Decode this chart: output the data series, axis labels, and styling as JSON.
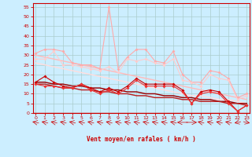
{
  "xlabel": "Vent moyen/en rafales ( km/h )",
  "background_color": "#cceeff",
  "grid_color": "#aacccc",
  "x": [
    0,
    1,
    2,
    3,
    4,
    5,
    6,
    7,
    8,
    9,
    10,
    11,
    12,
    13,
    14,
    15,
    16,
    17,
    18,
    19,
    20,
    21,
    22,
    23
  ],
  "line_rafale_spiky": [
    31,
    33,
    33,
    32,
    26,
    25,
    25,
    23,
    55,
    23,
    29,
    33,
    33,
    27,
    26,
    32,
    20,
    16,
    16,
    22,
    21,
    18,
    8,
    10
  ],
  "line_rafale_smooth": [
    28,
    28,
    32,
    25,
    25,
    24,
    23,
    22,
    24,
    21,
    28,
    27,
    28,
    26,
    25,
    28,
    17,
    16,
    14,
    20,
    18,
    17,
    7,
    9
  ],
  "line_trend_light1": [
    30,
    29,
    28,
    27,
    26,
    25,
    24,
    23,
    22,
    21,
    20,
    19,
    18,
    17,
    16,
    15,
    14,
    13,
    12,
    11,
    10,
    9,
    8,
    7
  ],
  "line_trend_light2": [
    26,
    25,
    24,
    23,
    22,
    21,
    20,
    19,
    18,
    17,
    16,
    15,
    14,
    13,
    12,
    11,
    10,
    9,
    9,
    8,
    7,
    7,
    6,
    5
  ],
  "line_moyen_spiky": [
    16,
    19,
    16,
    14,
    13,
    15,
    13,
    11,
    13,
    11,
    14,
    18,
    15,
    15,
    15,
    15,
    12,
    5,
    11,
    12,
    11,
    6,
    1,
    4
  ],
  "line_moyen_smooth": [
    15,
    14,
    14,
    13,
    13,
    15,
    12,
    10,
    12,
    10,
    13,
    17,
    14,
    14,
    14,
    14,
    11,
    5,
    10,
    11,
    10,
    5,
    1,
    4
  ],
  "line_trend_dark1": [
    16,
    16,
    15,
    15,
    14,
    14,
    13,
    13,
    12,
    12,
    11,
    11,
    10,
    10,
    9,
    9,
    8,
    8,
    7,
    7,
    6,
    6,
    5,
    5
  ],
  "line_trend_dark2": [
    15,
    15,
    14,
    13,
    13,
    12,
    12,
    11,
    11,
    10,
    10,
    9,
    9,
    8,
    8,
    8,
    7,
    7,
    6,
    6,
    6,
    5,
    5,
    4
  ],
  "color_rafale_spiky": "#ffaaaa",
  "color_rafale_smooth": "#ffcccc",
  "color_trend_light1": "#ffbbbb",
  "color_trend_light2": "#ffdddd",
  "color_moyen_spiky": "#cc0000",
  "color_moyen_smooth": "#ee3333",
  "color_trend_dark1": "#990000",
  "color_trend_dark2": "#bb2222",
  "ylim": [
    0,
    57
  ],
  "xlim": [
    -0.3,
    23.3
  ],
  "yticks": [
    0,
    5,
    10,
    15,
    20,
    25,
    30,
    35,
    40,
    45,
    50,
    55
  ],
  "xticks": [
    0,
    1,
    2,
    3,
    4,
    5,
    6,
    7,
    8,
    9,
    10,
    11,
    12,
    13,
    14,
    15,
    16,
    17,
    18,
    19,
    20,
    21,
    22,
    23
  ],
  "markersize": 2.0,
  "linewidth": 0.8
}
